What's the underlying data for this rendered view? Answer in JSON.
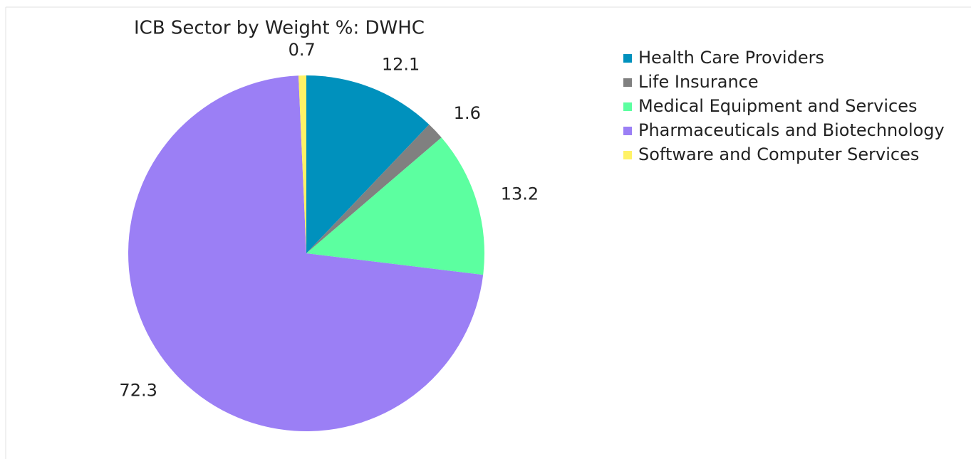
{
  "chart_data": {
    "type": "pie",
    "title": "ICB Sector by Weight %: DWHC",
    "categories": [
      "Health Care Providers",
      "Life Insurance",
      "Medical Equipment and Services",
      "Pharmaceuticals and Biotechnology",
      "Software and Computer Services"
    ],
    "values": [
      12.1,
      1.6,
      13.2,
      72.3,
      0.7
    ],
    "colors": [
      "#0091bd",
      "#808080",
      "#5cffa0",
      "#9b7ff5",
      "#fff266"
    ],
    "legend": "right"
  }
}
